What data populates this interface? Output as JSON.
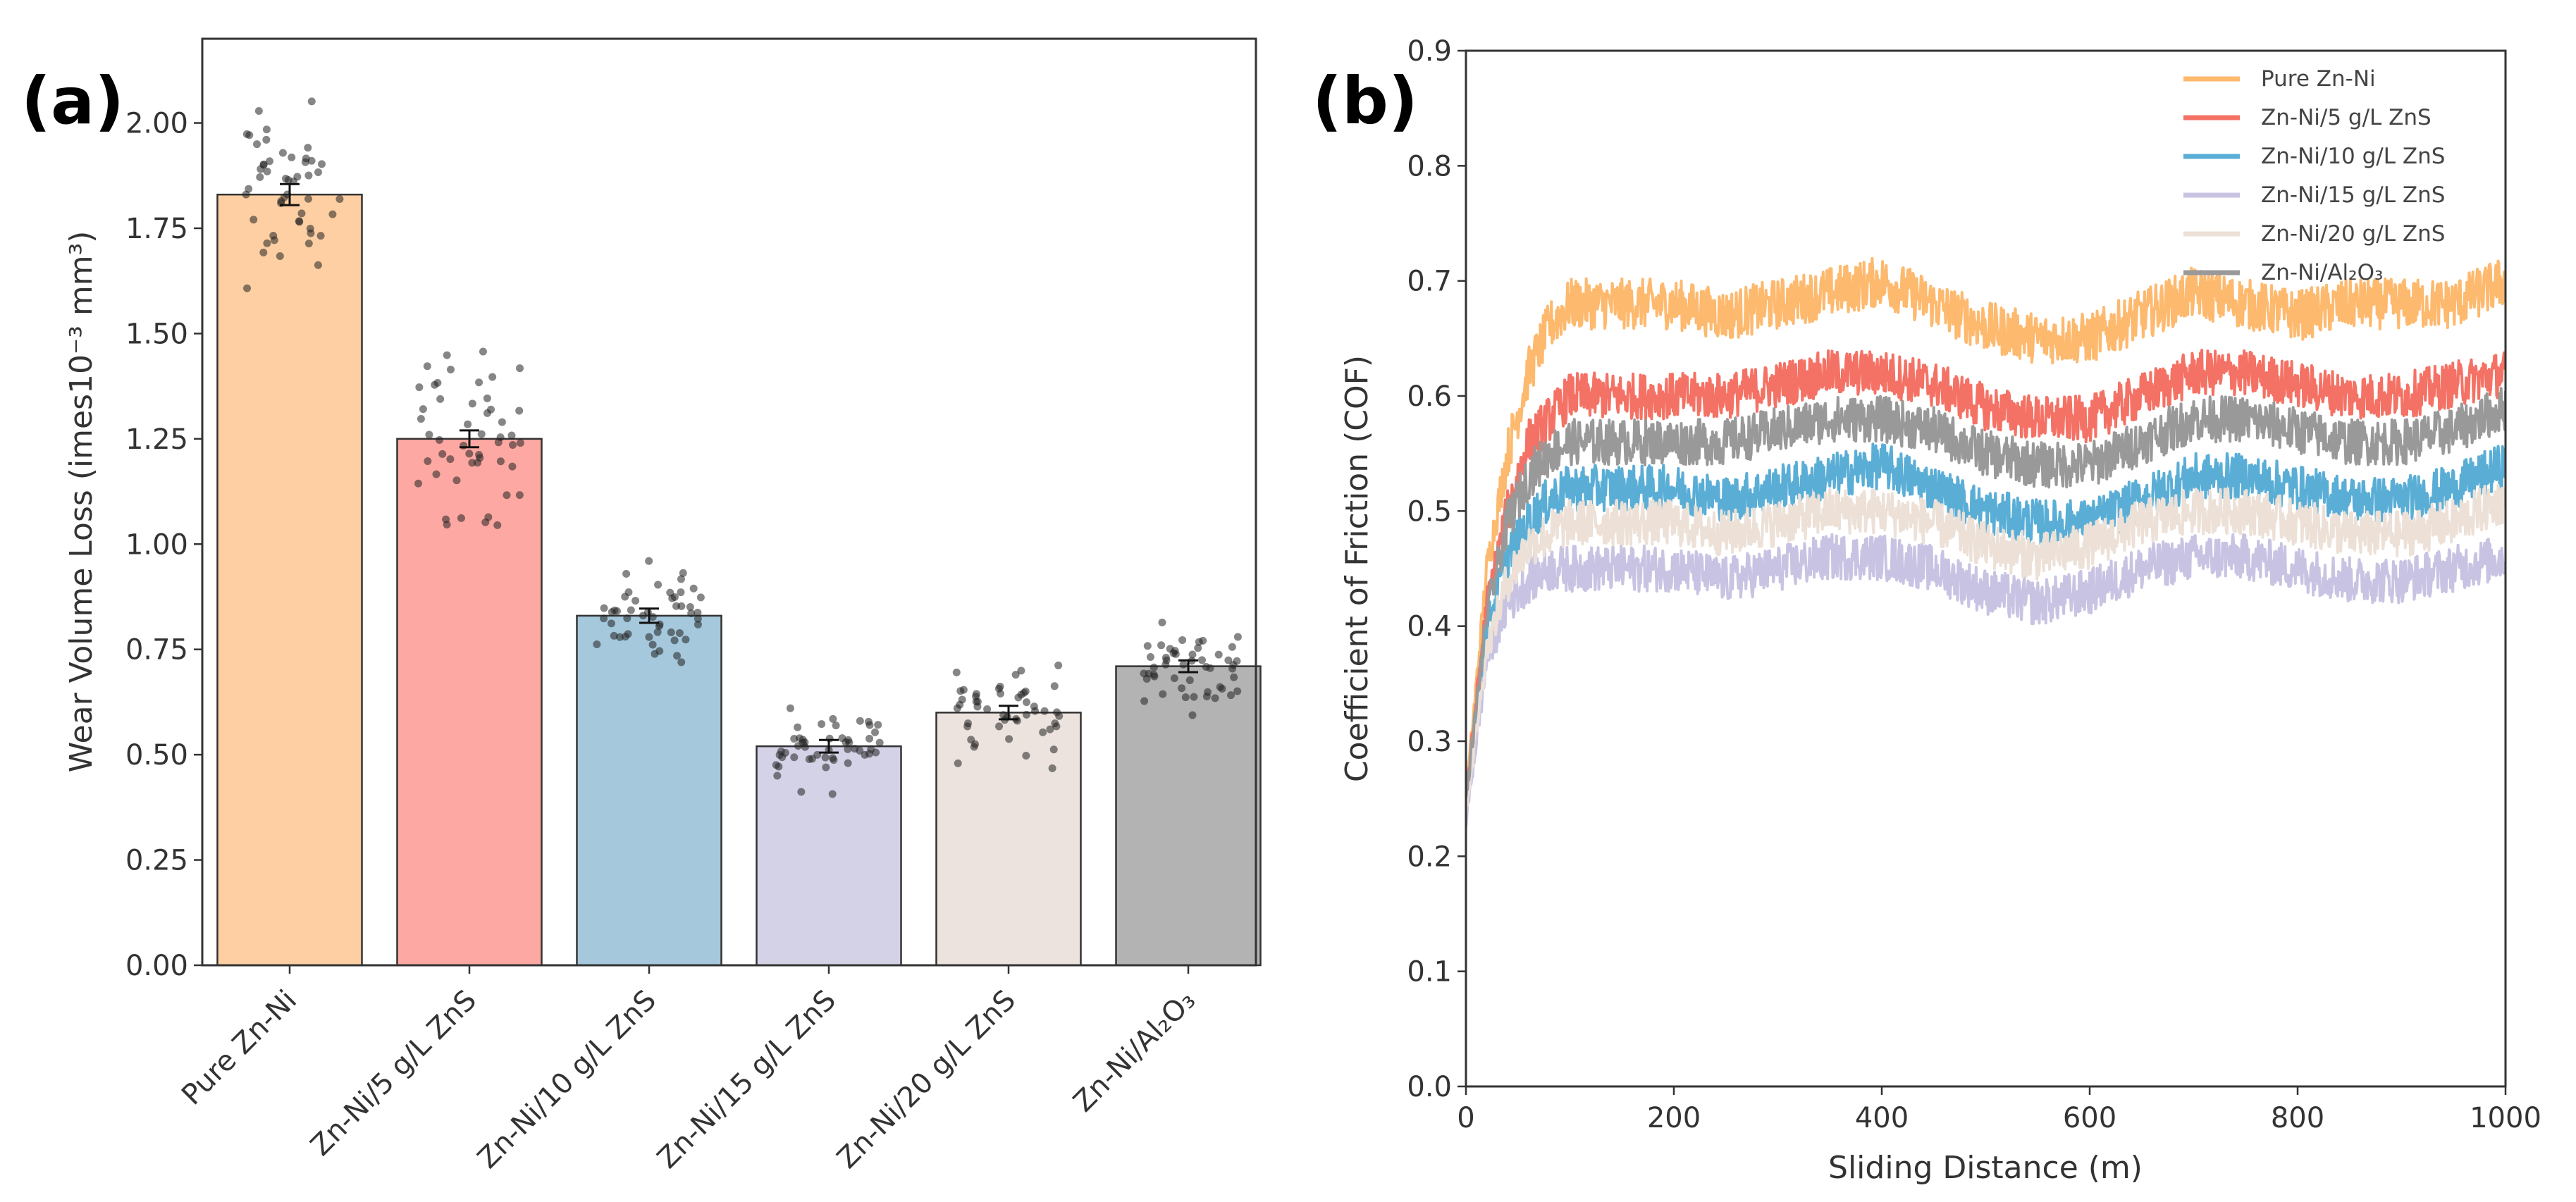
{
  "figure": {
    "panel_a_label": "(a)",
    "panel_b_label": "(b)"
  },
  "chart_data": [
    {
      "type": "bar",
      "title": "",
      "categories": [
        "Pure Zn-Ni",
        "Zn-Ni/5 g/L ZnS",
        "Zn-Ni/10 g/L ZnS",
        "Zn-Ni/15 g/L ZnS",
        "Zn-Ni/20 g/L ZnS",
        "Zn-Ni/Al₂O₃"
      ],
      "values": [
        1.83,
        1.25,
        0.83,
        0.52,
        0.6,
        0.71
      ],
      "errors": [
        0.025,
        0.02,
        0.017,
        0.015,
        0.016,
        0.014
      ],
      "scatter_spread": [
        0.22,
        0.22,
        0.12,
        0.1,
        0.13,
        0.1
      ],
      "colors": [
        "#fdcfa2",
        "#fda8a2",
        "#a5c8dc",
        "#d4d2e6",
        "#ece2de",
        "#b3b3b3"
      ],
      "xlabel": "",
      "ylabel": "Wear Volume Loss (imes10⁻³ mm³)",
      "ylim": [
        0,
        2.2
      ],
      "yticks": [
        "0.00",
        "0.25",
        "0.50",
        "0.75",
        "1.00",
        "1.25",
        "1.50",
        "1.75",
        "2.00"
      ],
      "grid": false
    },
    {
      "type": "line",
      "title": "",
      "xlabel": "Sliding Distance (m)",
      "ylabel": "Coefficient of Friction (COF)",
      "xlim": [
        0,
        1000
      ],
      "ylim": [
        0,
        0.9
      ],
      "xticks": [
        "0",
        "200",
        "400",
        "600",
        "800",
        "1000"
      ],
      "yticks": [
        "0.0",
        "0.1",
        "0.2",
        "0.3",
        "0.4",
        "0.5",
        "0.6",
        "0.7",
        "0.8",
        "0.9"
      ],
      "legend_position": "top-right",
      "x": [
        0,
        20,
        40,
        60,
        80,
        100,
        150,
        200,
        250,
        300,
        350,
        400,
        450,
        500,
        550,
        600,
        650,
        700,
        750,
        800,
        850,
        900,
        950,
        1000
      ],
      "series": [
        {
          "name": "Pure Zn-Ni",
          "color": "#fdb96e",
          "noise": 0.022,
          "values": [
            0.25,
            0.45,
            0.55,
            0.62,
            0.66,
            0.68,
            0.68,
            0.68,
            0.67,
            0.68,
            0.69,
            0.7,
            0.68,
            0.66,
            0.65,
            0.65,
            0.67,
            0.69,
            0.68,
            0.67,
            0.68,
            0.68,
            0.68,
            0.7
          ]
        },
        {
          "name": "Zn-Ni/5 g/L ZnS",
          "color": "#f47265",
          "noise": 0.02,
          "values": [
            0.25,
            0.42,
            0.5,
            0.56,
            0.58,
            0.6,
            0.6,
            0.6,
            0.6,
            0.61,
            0.62,
            0.62,
            0.61,
            0.59,
            0.58,
            0.58,
            0.6,
            0.62,
            0.62,
            0.61,
            0.6,
            0.6,
            0.61,
            0.62
          ]
        },
        {
          "name": "Zn-Ni/10 g/L ZnS",
          "color": "#5aaed6",
          "noise": 0.02,
          "values": [
            0.24,
            0.4,
            0.46,
            0.49,
            0.51,
            0.52,
            0.52,
            0.52,
            0.51,
            0.52,
            0.53,
            0.54,
            0.52,
            0.5,
            0.49,
            0.49,
            0.51,
            0.53,
            0.53,
            0.52,
            0.51,
            0.51,
            0.52,
            0.54
          ]
        },
        {
          "name": "Zn-Ni/15 g/L ZnS",
          "color": "#c9c3e3",
          "noise": 0.02,
          "values": [
            0.23,
            0.37,
            0.42,
            0.44,
            0.45,
            0.45,
            0.45,
            0.45,
            0.44,
            0.45,
            0.46,
            0.46,
            0.45,
            0.43,
            0.42,
            0.43,
            0.45,
            0.46,
            0.46,
            0.45,
            0.44,
            0.44,
            0.45,
            0.46
          ]
        },
        {
          "name": "Zn-Ni/20 g/L ZnS",
          "color": "#ece0d7",
          "noise": 0.02,
          "values": [
            0.24,
            0.38,
            0.44,
            0.47,
            0.48,
            0.49,
            0.49,
            0.49,
            0.48,
            0.49,
            0.5,
            0.5,
            0.49,
            0.47,
            0.46,
            0.47,
            0.49,
            0.5,
            0.5,
            0.49,
            0.48,
            0.48,
            0.49,
            0.51
          ]
        },
        {
          "name": "Zn-Ni/Al₂O₃",
          "color": "#999999",
          "noise": 0.02,
          "values": [
            0.25,
            0.41,
            0.49,
            0.53,
            0.55,
            0.56,
            0.56,
            0.56,
            0.56,
            0.57,
            0.58,
            0.58,
            0.57,
            0.55,
            0.54,
            0.54,
            0.56,
            0.58,
            0.58,
            0.57,
            0.56,
            0.56,
            0.57,
            0.59
          ]
        }
      ]
    }
  ]
}
